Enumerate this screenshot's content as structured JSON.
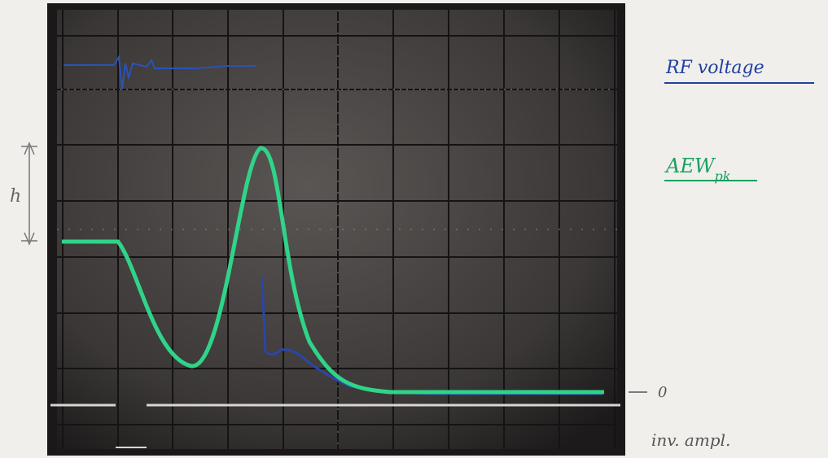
{
  "annotations": {
    "rf_label": "RF voltage",
    "aew_label": "AEW",
    "aew_subscript": "pk",
    "zero_label": "0",
    "axis_note": "inv. ampl.",
    "height_label": "h"
  }
}
